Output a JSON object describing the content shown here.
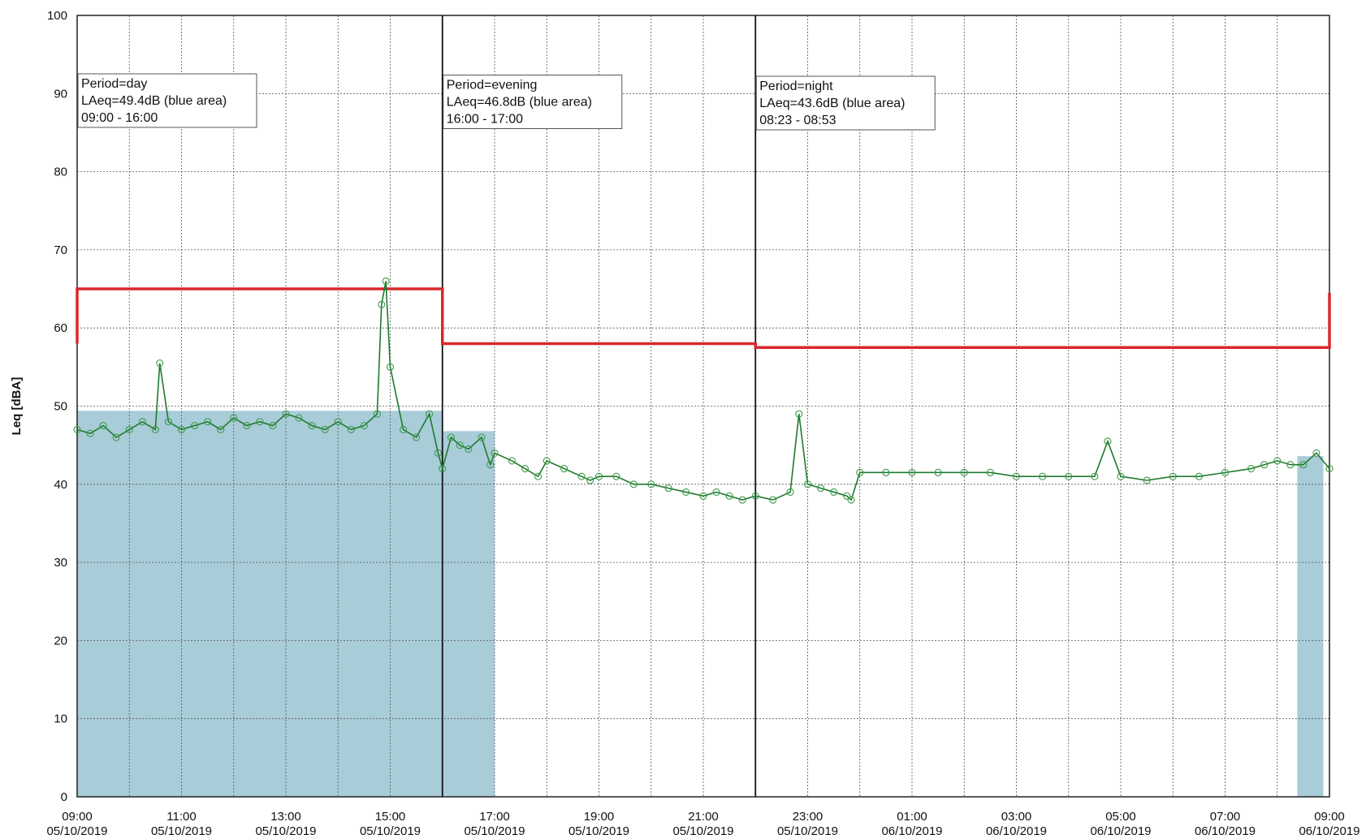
{
  "chart_data": {
    "type": "line",
    "title": "",
    "ylabel": "Leq [dBA]",
    "xlabel": "",
    "ylim": [
      0,
      100
    ],
    "y_ticks": [
      0,
      10,
      20,
      30,
      40,
      50,
      60,
      70,
      80,
      90,
      100
    ],
    "x_start": "2019-10-05T09:00",
    "x_end": "2019-10-06T09:00",
    "x_tick_labels": [
      {
        "time": "09:00",
        "date": "05/10/2019"
      },
      {
        "time": "11:00",
        "date": "05/10/2019"
      },
      {
        "time": "13:00",
        "date": "05/10/2019"
      },
      {
        "time": "15:00",
        "date": "05/10/2019"
      },
      {
        "time": "17:00",
        "date": "05/10/2019"
      },
      {
        "time": "19:00",
        "date": "05/10/2019"
      },
      {
        "time": "21:00",
        "date": "05/10/2019"
      },
      {
        "time": "23:00",
        "date": "05/10/2019"
      },
      {
        "time": "01:00",
        "date": "06/10/2019"
      },
      {
        "time": "03:00",
        "date": "06/10/2019"
      },
      {
        "time": "05:00",
        "date": "06/10/2019"
      },
      {
        "time": "07:00",
        "date": "06/10/2019"
      },
      {
        "time": "09:00",
        "date": "06/10/2019"
      }
    ],
    "grid": true,
    "period_boundaries": [
      "2019-10-05T16:00",
      "2019-10-05T22:00"
    ],
    "annotations": [
      {
        "lines": [
          "Period=day",
          "LAeq=49.4dB (blue area)",
          "09:00 - 16:00"
        ],
        "anchor": "2019-10-05T09:00"
      },
      {
        "lines": [
          "Period=evening",
          "LAeq=46.8dB (blue area)",
          "16:00 - 17:00"
        ],
        "anchor": "2019-10-05T16:00"
      },
      {
        "lines": [
          "Period=night",
          "LAeq=43.6dB (blue area)",
          "08:23 - 08:53"
        ],
        "anchor": "2019-10-05T22:00"
      }
    ],
    "laeq_areas": [
      {
        "start": "2019-10-05T09:00",
        "end": "2019-10-05T16:00",
        "value": 49.4
      },
      {
        "start": "2019-10-05T16:00",
        "end": "2019-10-05T17:00",
        "value": 46.8
      },
      {
        "start": "2019-10-06T08:23",
        "end": "2019-10-06T08:53",
        "value": 43.6
      }
    ],
    "limit_line": [
      {
        "start": "2019-10-05T09:00",
        "end": "2019-10-05T16:00",
        "value": 65
      },
      {
        "start": "2019-10-05T16:00",
        "end": "2019-10-05T22:00",
        "value": 58
      },
      {
        "start": "2019-10-05T22:00",
        "end": "2019-10-06T09:00",
        "value": 57.5
      }
    ],
    "series": [
      {
        "x": [
          "2019-10-05T09:00",
          "2019-10-05T09:15",
          "2019-10-05T09:30",
          "2019-10-05T09:45",
          "2019-10-05T10:00",
          "2019-10-05T10:15",
          "2019-10-05T10:30",
          "2019-10-05T10:35",
          "2019-10-05T10:45",
          "2019-10-05T11:00",
          "2019-10-05T11:15",
          "2019-10-05T11:30",
          "2019-10-05T11:45",
          "2019-10-05T12:00",
          "2019-10-05T12:15",
          "2019-10-05T12:30",
          "2019-10-05T12:45",
          "2019-10-05T13:00",
          "2019-10-05T13:15",
          "2019-10-05T13:30",
          "2019-10-05T13:45",
          "2019-10-05T14:00",
          "2019-10-05T14:15",
          "2019-10-05T14:30",
          "2019-10-05T14:45",
          "2019-10-05T14:50",
          "2019-10-05T14:55",
          "2019-10-05T15:00",
          "2019-10-05T15:15",
          "2019-10-05T15:30",
          "2019-10-05T15:45",
          "2019-10-05T15:55",
          "2019-10-05T16:00",
          "2019-10-05T16:10",
          "2019-10-05T16:20",
          "2019-10-05T16:30",
          "2019-10-05T16:45",
          "2019-10-05T16:55",
          "2019-10-05T17:00",
          "2019-10-05T17:20",
          "2019-10-05T17:35",
          "2019-10-05T17:50",
          "2019-10-05T18:00",
          "2019-10-05T18:20",
          "2019-10-05T18:40",
          "2019-10-05T18:50",
          "2019-10-05T19:00",
          "2019-10-05T19:20",
          "2019-10-05T19:40",
          "2019-10-05T20:00",
          "2019-10-05T20:20",
          "2019-10-05T20:40",
          "2019-10-05T21:00",
          "2019-10-05T21:15",
          "2019-10-05T21:30",
          "2019-10-05T21:45",
          "2019-10-05T22:00",
          "2019-10-05T22:20",
          "2019-10-05T22:40",
          "2019-10-05T22:50",
          "2019-10-05T23:00",
          "2019-10-05T23:15",
          "2019-10-05T23:30",
          "2019-10-05T23:45",
          "2019-10-05T23:50",
          "2019-10-06T00:00",
          "2019-10-06T00:30",
          "2019-10-06T01:00",
          "2019-10-06T01:30",
          "2019-10-06T02:00",
          "2019-10-06T02:30",
          "2019-10-06T03:00",
          "2019-10-06T03:30",
          "2019-10-06T04:00",
          "2019-10-06T04:30",
          "2019-10-06T04:45",
          "2019-10-06T05:00",
          "2019-10-06T05:30",
          "2019-10-06T06:00",
          "2019-10-06T06:30",
          "2019-10-06T07:00",
          "2019-10-06T07:30",
          "2019-10-06T07:45",
          "2019-10-06T08:00",
          "2019-10-06T08:15",
          "2019-10-06T08:30",
          "2019-10-06T08:45",
          "2019-10-06T09:00"
        ],
        "y": [
          47,
          46.5,
          47.5,
          46,
          47,
          48,
          47,
          55.5,
          48,
          47,
          47.5,
          48,
          47,
          48.5,
          47.5,
          48,
          47.5,
          49,
          48.5,
          47.5,
          47,
          48,
          47,
          47.5,
          49,
          63,
          66,
          55,
          47,
          46,
          49,
          44,
          42,
          46,
          45,
          44.5,
          46,
          42.5,
          44,
          43,
          42,
          41,
          43,
          42,
          41,
          40.5,
          41,
          41,
          40,
          40,
          39.5,
          39,
          38.5,
          39,
          38.5,
          38,
          38.5,
          38,
          39,
          49,
          40,
          39.5,
          39,
          38.5,
          38,
          41.5,
          41.5,
          41.5,
          41.5,
          41.5,
          41.5,
          41,
          41,
          41,
          41,
          45.5,
          41,
          40.5,
          41,
          41,
          41.5,
          42,
          42.5,
          43,
          42.5,
          42.5,
          44,
          42
        ]
      }
    ]
  }
}
